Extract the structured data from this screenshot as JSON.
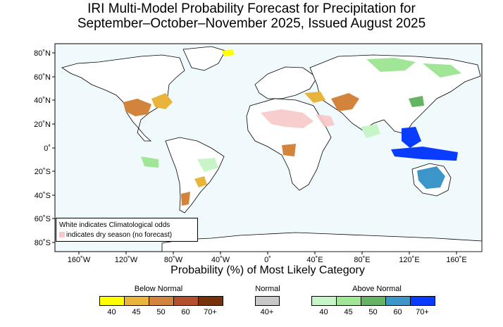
{
  "title_line1": "IRI Multi-Model Probability Forecast for Precipitation for",
  "title_line2": "September–October–November 2025, Issued August 2025",
  "lat_labels": [
    "80˚N",
    "60˚N",
    "40˚N",
    "20˚N",
    "0˚",
    "20˚S",
    "40˚S",
    "60˚S",
    "80˚S"
  ],
  "lon_labels": [
    "160˚W",
    "120˚W",
    "80˚W",
    "40˚W",
    "0˚",
    "40˚E",
    "80˚E",
    "120˚E",
    "160˚E"
  ],
  "note": {
    "line1": "White indicates Climatological odds",
    "line2": "indicates dry season (no forecast)"
  },
  "legend": {
    "title": "Probability (%) of Most Likely Category",
    "below_normal": {
      "label": "Below Normal",
      "ticks": [
        "40",
        "45",
        "50",
        "60",
        "70+"
      ],
      "colors": [
        "#ffff00",
        "#e8b43c",
        "#d2843c",
        "#b4502d",
        "#78320a"
      ]
    },
    "normal": {
      "label": "Normal",
      "ticks": [
        "40+"
      ],
      "colors": [
        "#c8c8c8"
      ]
    },
    "above_normal": {
      "label": "Above Normal",
      "ticks": [
        "40",
        "45",
        "50",
        "60",
        "70+"
      ],
      "colors": [
        "#c8f5c8",
        "#a0e696",
        "#64b464",
        "#3c96c8",
        "#0a3cff"
      ]
    }
  },
  "colors": {
    "ocean": "#f0fafd",
    "land": "#ffffff",
    "dry_season": "#f8c8c8"
  }
}
